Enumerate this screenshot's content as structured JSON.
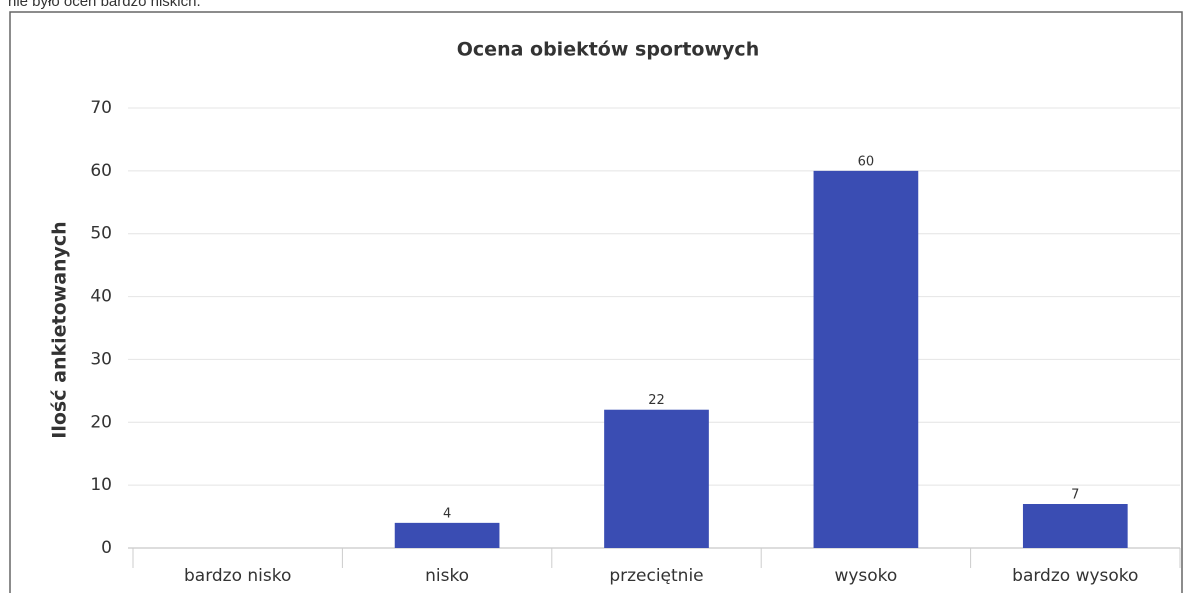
{
  "text": "nie było ocen bardzo niskich.",
  "chart_data": {
    "type": "bar",
    "title": "Ocena obiektów sportowych",
    "y_label": "Ilość ankietowanych",
    "categories": [
      "bardzo nisko",
      "nisko",
      "przeciętnie",
      "wysoko",
      "bardzo wysoko"
    ],
    "values": [
      0,
      4,
      22,
      60,
      7
    ],
    "value_labels": [
      null,
      "4",
      "22",
      "60",
      "7"
    ],
    "color": "#3a4db3",
    "ylim": [
      0,
      70
    ],
    "yticks": [
      0,
      10,
      20,
      30,
      40,
      50,
      60,
      70
    ],
    "grid": true
  }
}
